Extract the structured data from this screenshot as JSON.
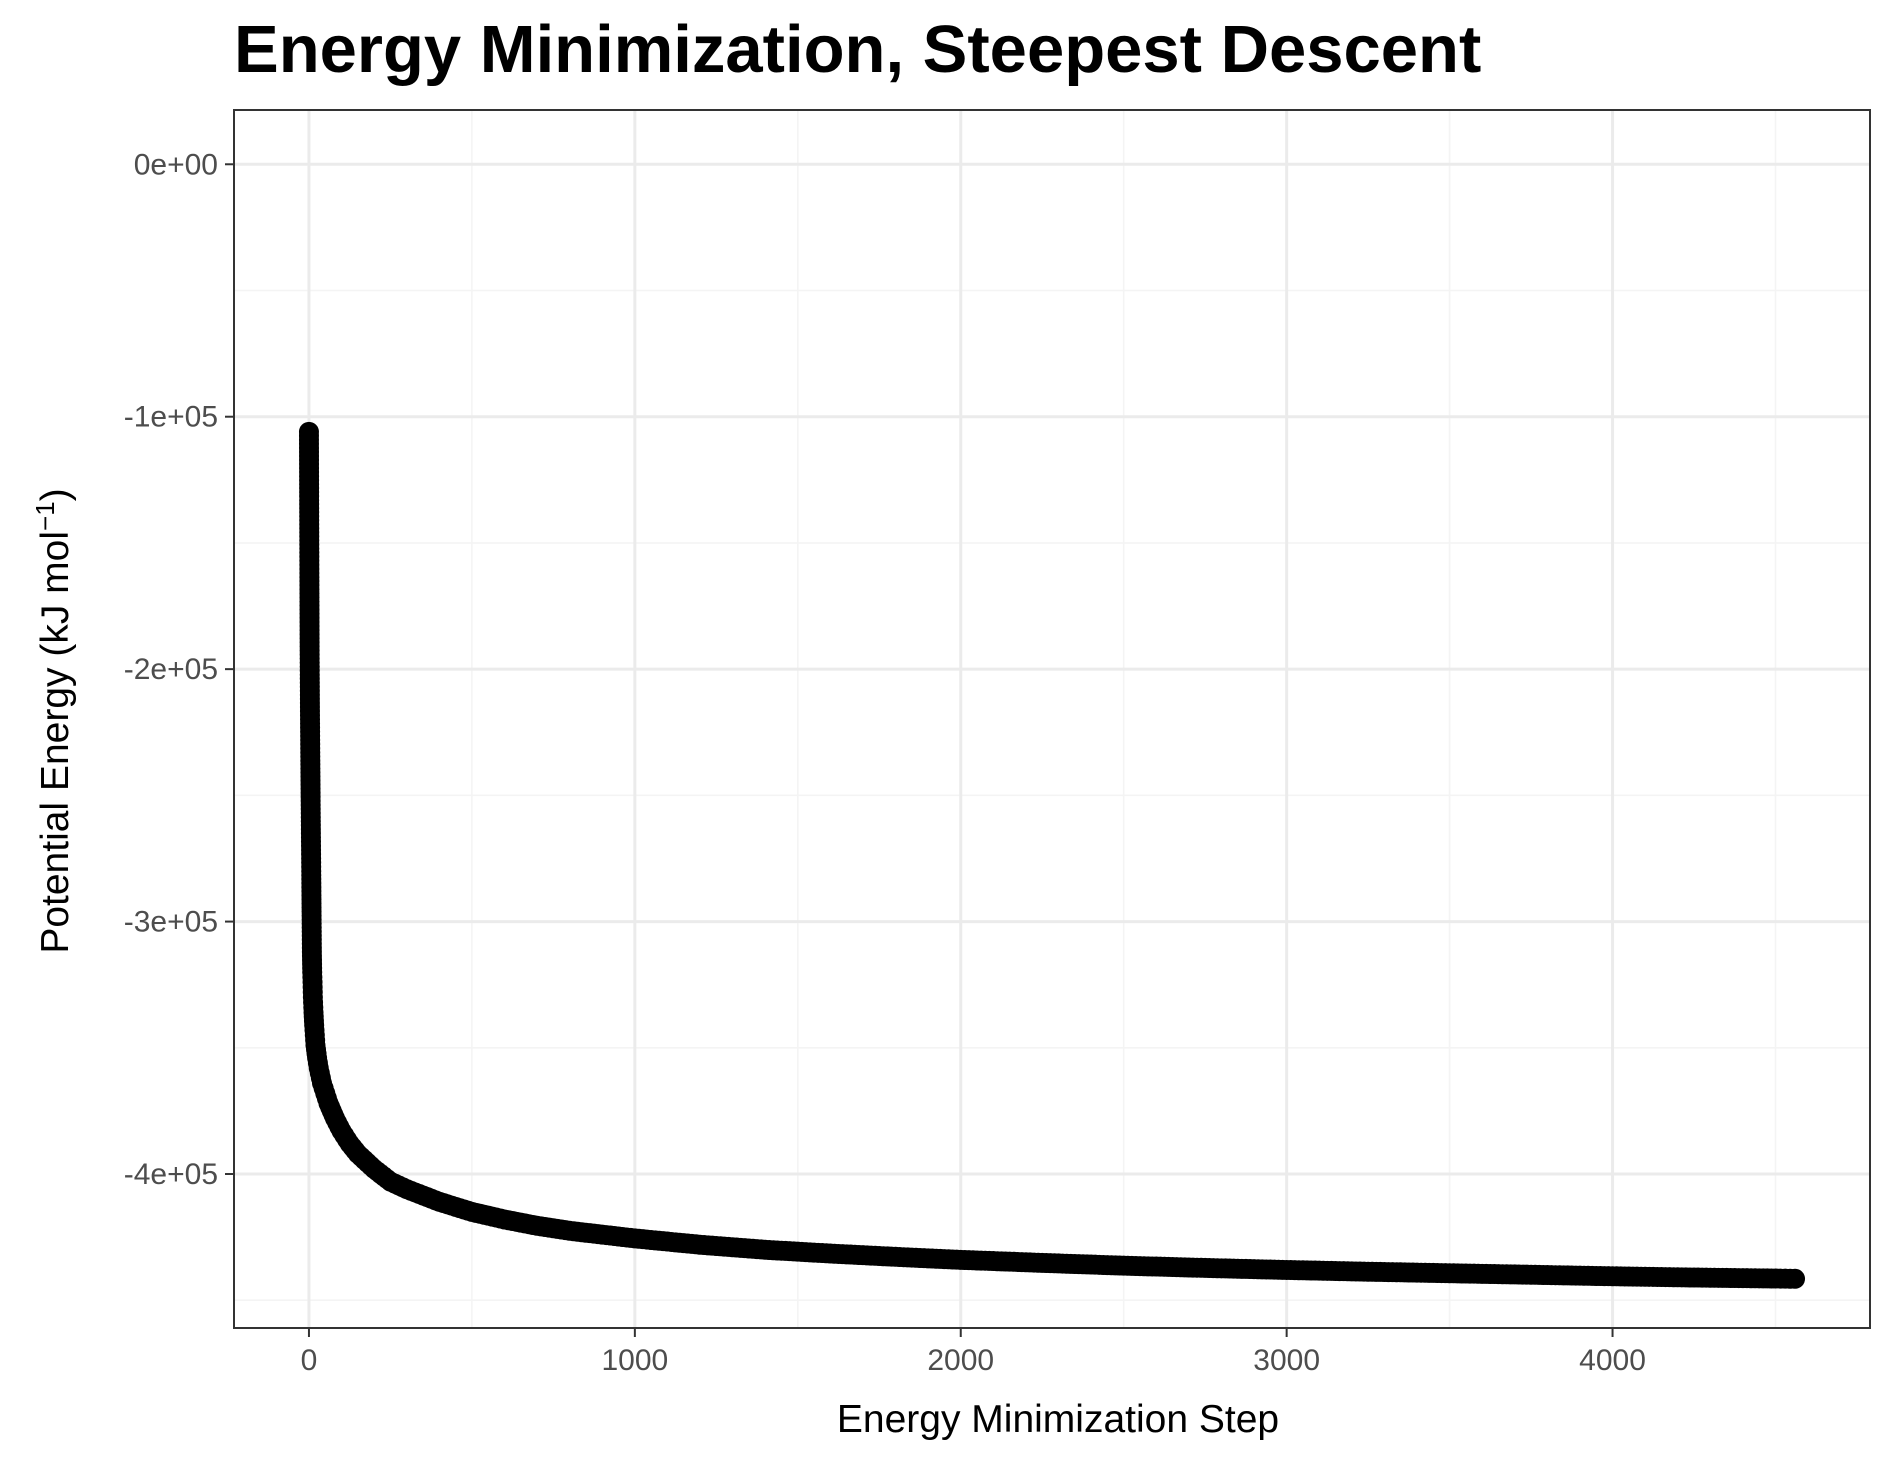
{
  "chart_data": {
    "type": "line",
    "title": "Energy Minimization, Steepest Descent",
    "xlabel": "Energy Minimization Step",
    "ylabel": {
      "text": "Potential Energy (kJ  mol",
      "superscript": "−1",
      "suffix": ")"
    },
    "xlim": [
      -230,
      4790
    ],
    "ylim": [
      -461000,
      21500
    ],
    "x_ticks": [
      {
        "value": 0,
        "label": "0"
      },
      {
        "value": 1000,
        "label": "1000"
      },
      {
        "value": 2000,
        "label": "2000"
      },
      {
        "value": 3000,
        "label": "3000"
      },
      {
        "value": 4000,
        "label": "4000"
      }
    ],
    "x_minor_ticks": [
      500,
      1500,
      2500,
      3500,
      4500
    ],
    "y_ticks": [
      {
        "value": 0,
        "label": "0e+00"
      },
      {
        "value": -100000,
        "label": "-1e+05"
      },
      {
        "value": -200000,
        "label": "-2e+05"
      },
      {
        "value": -300000,
        "label": "-3e+05"
      },
      {
        "value": -400000,
        "label": "-4e+05"
      }
    ],
    "y_minor_ticks": [
      -50000,
      -150000,
      -250000,
      -350000,
      -450000
    ],
    "grid": true,
    "legend": "none",
    "colors": {
      "background": "#ffffff",
      "panel_border": "#333333",
      "grid_major": "#ebebeb",
      "grid_minor": "#f4f4f4",
      "series": "#000000",
      "tick_label": "#4d4d4d"
    },
    "series": [
      {
        "marker": "circle",
        "line": true,
        "x": [
          0,
          1,
          2,
          3,
          4,
          5,
          6,
          7,
          8,
          9,
          10,
          11,
          12,
          14,
          16,
          18,
          20,
          25,
          30,
          40,
          50,
          60,
          80,
          100,
          125,
          150,
          200,
          250,
          300,
          400,
          500,
          600,
          700,
          800,
          900,
          1000,
          1200,
          1400,
          1600,
          1800,
          2000,
          2250,
          2500,
          2750,
          3000,
          3250,
          3500,
          3750,
          4000,
          4250,
          4500,
          4560
        ],
        "y": [
          -106000,
          -149000,
          -191000,
          -215000,
          -233000,
          -249000,
          -265000,
          -280000,
          -296000,
          -312000,
          -320000,
          -324000,
          -330000,
          -336000,
          -341000,
          -345000,
          -349000,
          -354000,
          -358000,
          -364000,
          -368000,
          -372000,
          -378000,
          -383000,
          -388000,
          -392000,
          -398000,
          -403000,
          -406000,
          -411000,
          -415000,
          -418000,
          -420500,
          -422500,
          -424000,
          -425500,
          -428000,
          -430000,
          -431500,
          -432800,
          -434000,
          -435200,
          -436300,
          -437200,
          -438000,
          -438700,
          -439300,
          -439900,
          -440500,
          -441000,
          -441400,
          -441500
        ]
      }
    ]
  }
}
